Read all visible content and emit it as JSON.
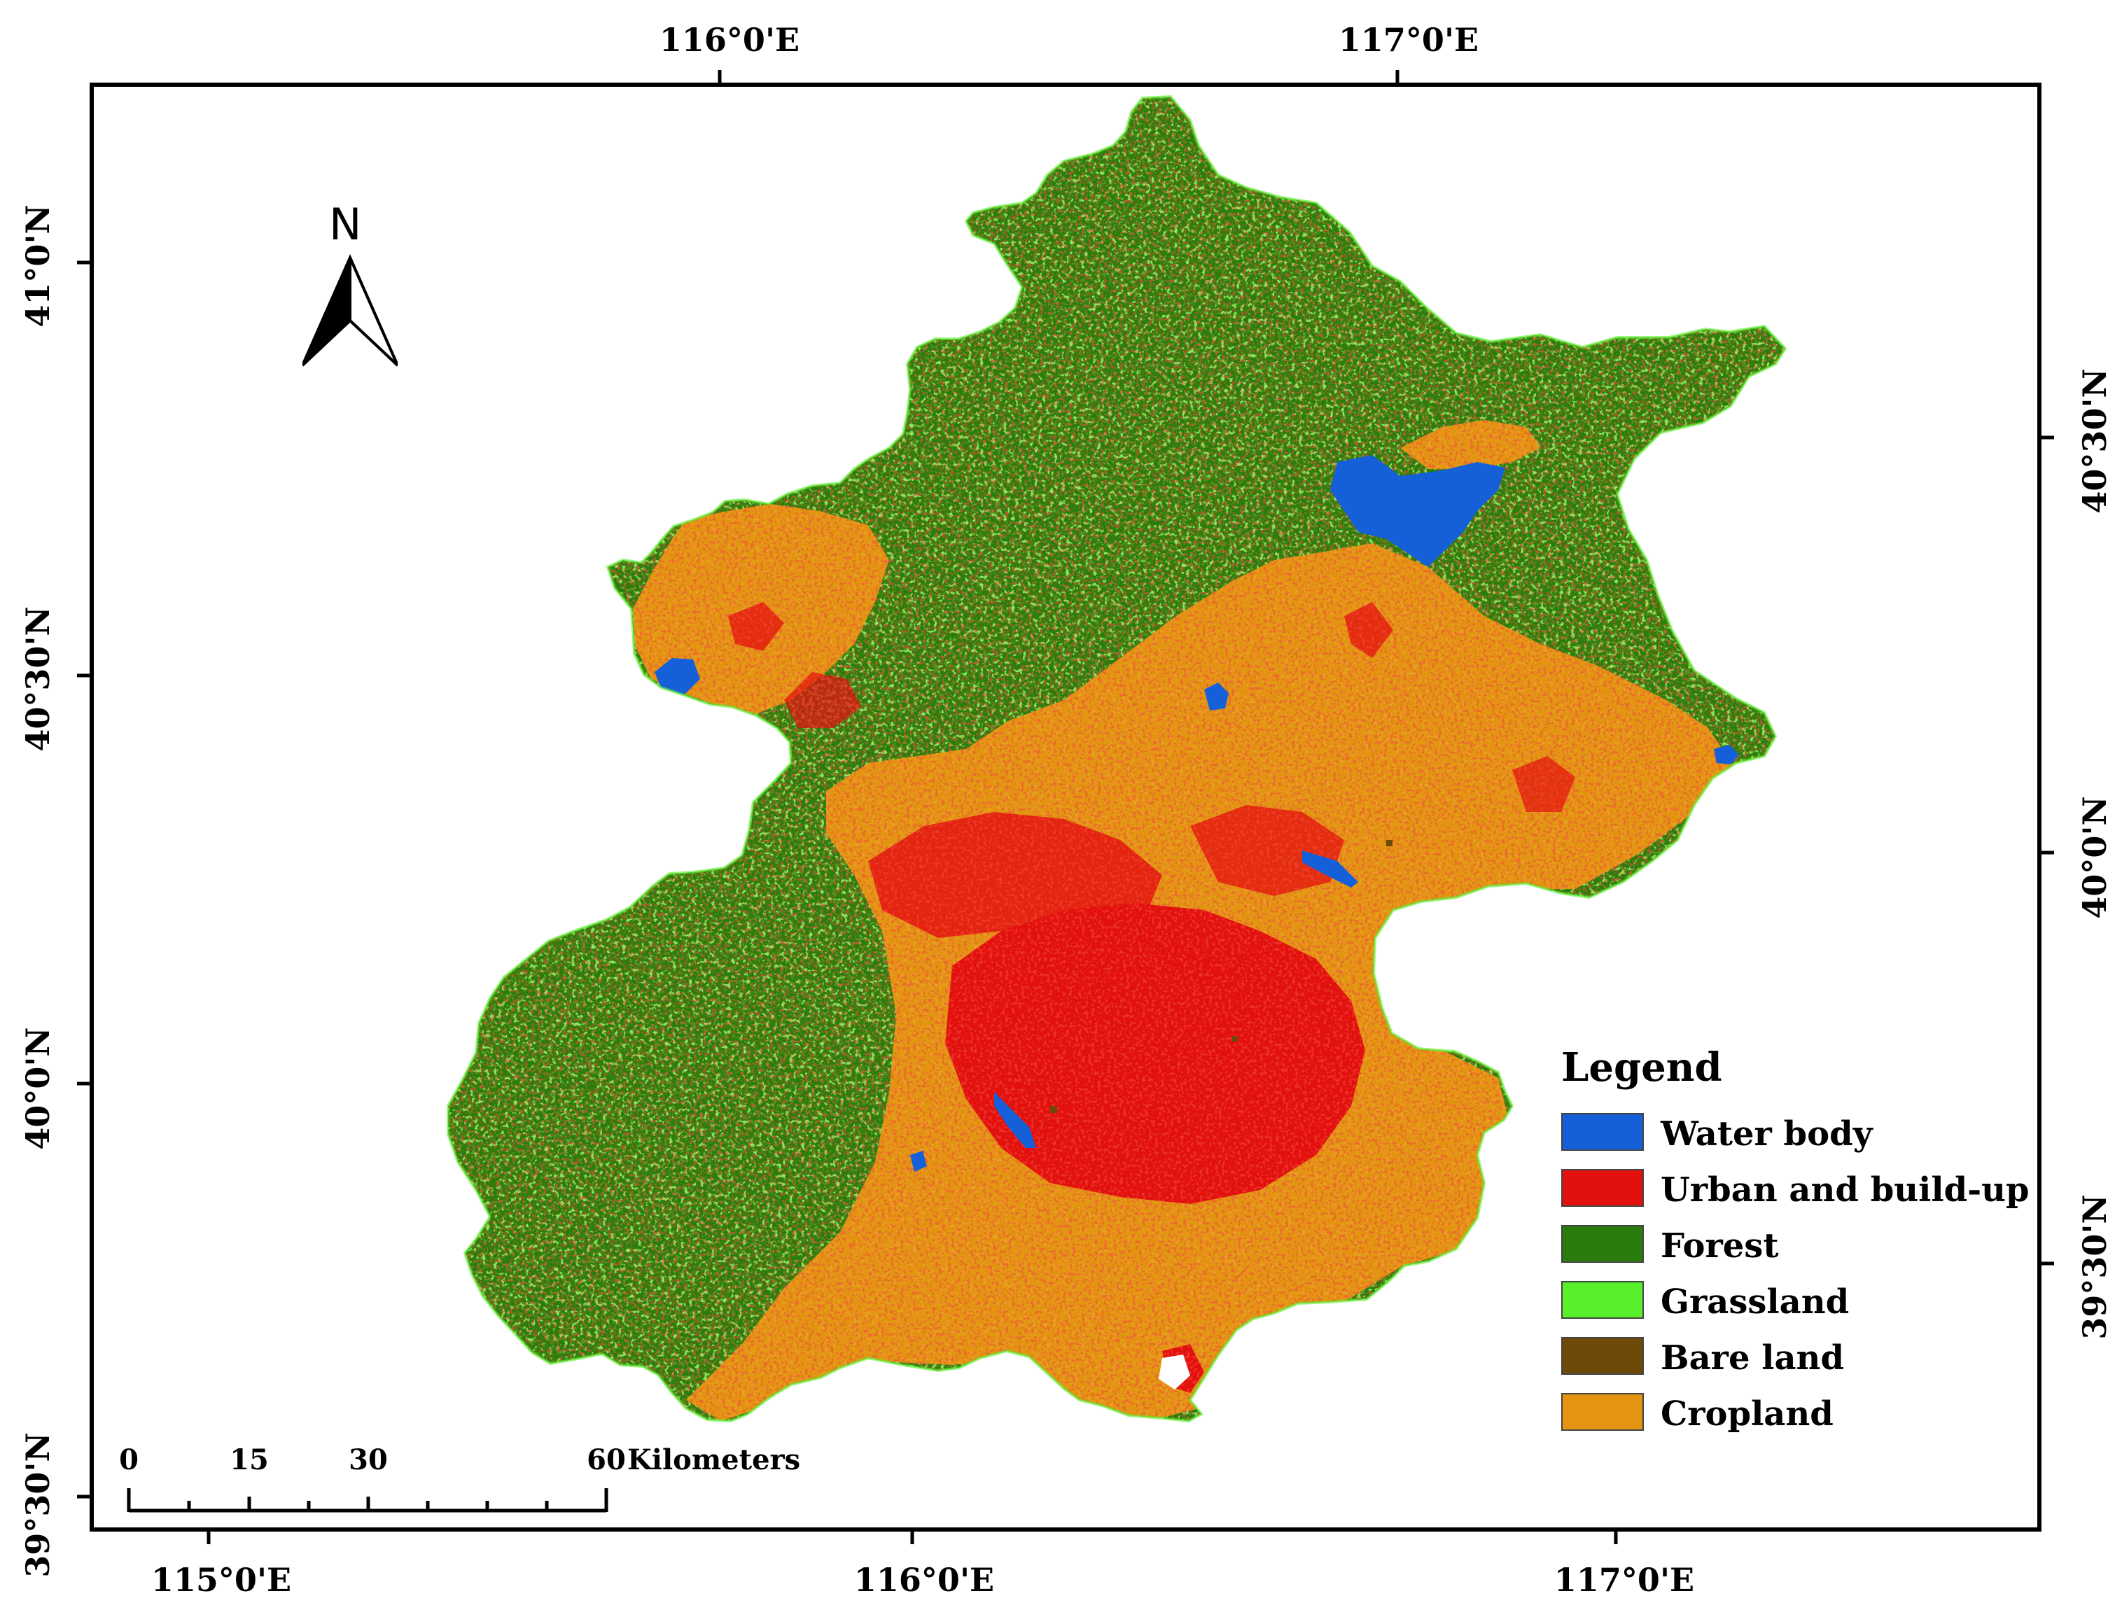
{
  "graticule": {
    "top_labels": [
      "116°0'E",
      "117°0'E"
    ],
    "bottom_labels": [
      "115°0'E",
      "116°0'E",
      "117°0'E"
    ],
    "left_labels": [
      "41°0'N",
      "40°30'N",
      "40°0'N",
      "39°30'N"
    ],
    "right_labels": [
      "40°30'N",
      "40°0'N",
      "39°30'N"
    ]
  },
  "north_arrow": {
    "label": "N"
  },
  "legend": {
    "title": "Legend",
    "items": [
      {
        "label": "Water body",
        "color": "#1560d8"
      },
      {
        "label": "Urban and build-up",
        "color": "#e3110e"
      },
      {
        "label": "Forest",
        "color": "#2a7d0c"
      },
      {
        "label": "Grassland",
        "color": "#58f02a"
      },
      {
        "label": "Bare land",
        "color": "#6e4a08"
      },
      {
        "label": "Cropland",
        "color": "#e39512"
      }
    ]
  },
  "scale_bar": {
    "ticks": [
      "0",
      "15",
      "30",
      "60"
    ],
    "unit": "Kilometers"
  },
  "colors": {
    "forest_dark": "#1f6b08",
    "grassland_speck": "#6bf23a"
  }
}
